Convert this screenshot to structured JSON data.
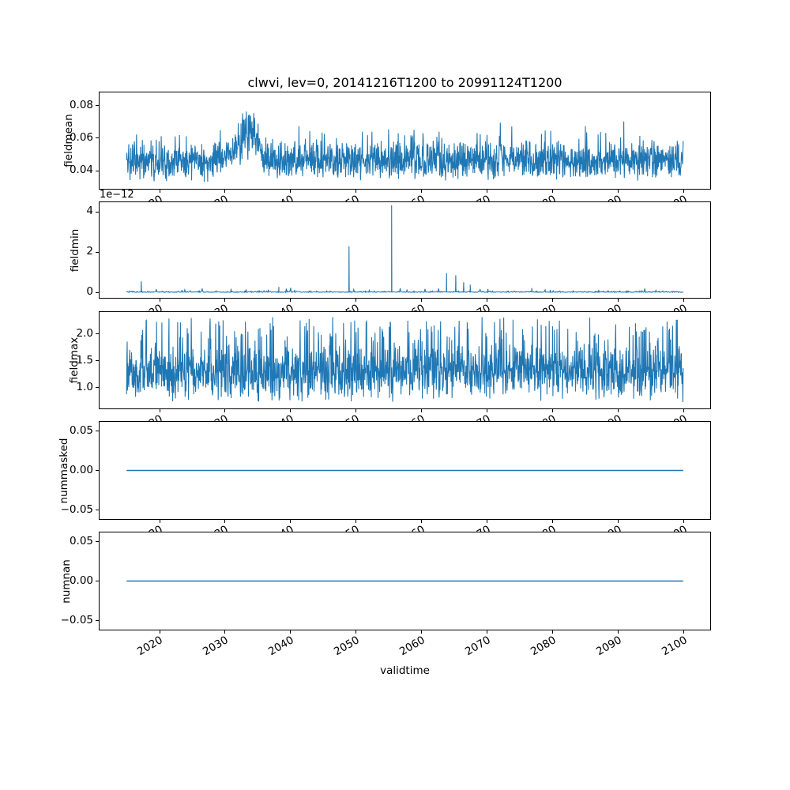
{
  "figure": {
    "title": "clwvi, lev=0, 20141216T1200 to 20991124T1200",
    "line_color": "#1f77b4",
    "frame_color": "#000000",
    "background": "#ffffff"
  },
  "x_axis": {
    "label": "validtime",
    "xlim": [
      2010.71,
      2104.15
    ],
    "data_range": [
      2014.96,
      2099.9
    ],
    "ticks": [
      2020,
      2030,
      2040,
      2050,
      2060,
      2070,
      2080,
      2090,
      2100
    ],
    "labels": [
      "2020",
      "2030",
      "2040",
      "2050",
      "2060",
      "2070",
      "2080",
      "2090",
      "2100"
    ]
  },
  "chart_data": [
    {
      "type": "line",
      "name": "fieldmean",
      "ylabel": "fieldmean",
      "style": "noise",
      "seed": 11,
      "ylim": [
        0.0285,
        0.0885
      ],
      "yticks": [
        0.04,
        0.06,
        0.08
      ],
      "ytick_labels": [
        "0.04",
        "0.06",
        "0.08"
      ],
      "noise": {
        "points": 1800,
        "base": 0.046,
        "spread": 0.013,
        "spike_prob": 0.12,
        "spike_max": 0.015,
        "wide_prob": 0,
        "wide_min": 0,
        "wide_max": 0,
        "clip_min": 0.0315,
        "clip_max": 0.086
      },
      "anomaly": {
        "x_start": 2029.8,
        "x_end": 2036.0,
        "peak_x": 2034.3,
        "peak_add": 0.031
      }
    },
    {
      "type": "line",
      "name": "fieldmin",
      "ylabel": "fieldmin",
      "style": "spikes",
      "seed": 5,
      "offset_text": "1e−12",
      "units_scale": "1e-12",
      "ylim": [
        -0.31,
        4.51
      ],
      "yticks": [
        0,
        2,
        4
      ],
      "ytick_labels": [
        "0",
        "2",
        "4"
      ],
      "baseline": {
        "points": 900,
        "base_max": 0.03,
        "bump_prob": 0.3,
        "bump_max": 0.05,
        "rare_prob": 0.02,
        "rare_min": 0.07,
        "rare_max": 0.19
      },
      "spikes": [
        [
          2017.2,
          0.55
        ],
        [
          2020.5,
          0.07
        ],
        [
          2023.4,
          0.12
        ],
        [
          2026.1,
          0.09
        ],
        [
          2028.6,
          0.07
        ],
        [
          2030.9,
          0.18
        ],
        [
          2033.0,
          0.08
        ],
        [
          2035.2,
          0.1
        ],
        [
          2038.2,
          0.27
        ],
        [
          2040.6,
          0.12
        ],
        [
          2043.1,
          0.09
        ],
        [
          2045.5,
          0.07
        ],
        [
          2048.9,
          2.28
        ],
        [
          2051.4,
          0.08
        ],
        [
          2055.4,
          4.32
        ],
        [
          2058.8,
          0.09
        ],
        [
          2063.8,
          0.95
        ],
        [
          2065.2,
          0.85
        ],
        [
          2066.4,
          0.5
        ],
        [
          2067.4,
          0.38
        ],
        [
          2070.1,
          0.17
        ],
        [
          2073.2,
          0.08
        ],
        [
          2076.8,
          0.21
        ],
        [
          2079.6,
          0.12
        ],
        [
          2083.1,
          0.1
        ],
        [
          2087.0,
          0.11
        ],
        [
          2090.2,
          0.08
        ],
        [
          2093.6,
          0.1
        ],
        [
          2096.3,
          0.07
        ]
      ]
    },
    {
      "type": "line",
      "name": "fieldmax",
      "ylabel": "fieldmax",
      "style": "noise",
      "seed": 23,
      "ylim": [
        0.6,
        2.42
      ],
      "yticks": [
        1.0,
        1.5,
        2.0
      ],
      "ytick_labels": [
        "1.0",
        "1.5",
        "2.0"
      ],
      "noise": {
        "points": 1800,
        "base": 1.3,
        "spread": 0.5,
        "spike_prob": 0,
        "spike_max": 0,
        "wide_prob": 0.3,
        "wide_min": 0.73,
        "wide_max": 2.32,
        "clip_min": 0.73,
        "clip_max": 2.32
      }
    },
    {
      "type": "line",
      "name": "nummasked",
      "ylabel": "nummasked",
      "style": "flat",
      "value": 0,
      "ylim": [
        -0.0625,
        0.0625
      ],
      "yticks": [
        -0.05,
        0.0,
        0.05
      ],
      "ytick_labels": [
        "−0.05",
        "0.00",
        "0.05"
      ]
    },
    {
      "type": "line",
      "name": "numnan",
      "ylabel": "numnan",
      "style": "flat",
      "value": 0,
      "ylim": [
        -0.0625,
        0.0625
      ],
      "yticks": [
        -0.05,
        0.0,
        0.05
      ],
      "ytick_labels": [
        "−0.05",
        "0.00",
        "0.05"
      ]
    }
  ]
}
